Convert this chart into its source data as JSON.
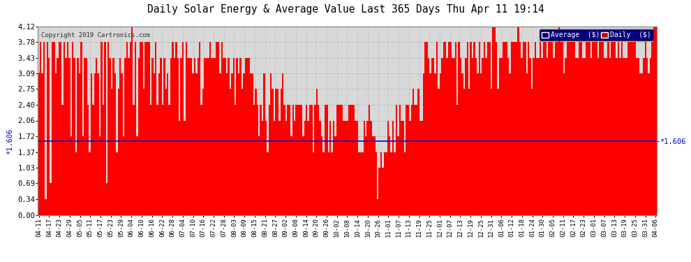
{
  "title": "Daily Solar Energy & Average Value Last 365 Days Thu Apr 11 19:14",
  "copyright": "Copyright 2019 Cartronics.com",
  "average_value": 1.606,
  "bar_color": "#FF0000",
  "average_color": "#0000CC",
  "background_color": "#FFFFFF",
  "plot_bg_color": "#D8D8D8",
  "grid_color": "#BBBBBB",
  "yticks": [
    0.0,
    0.34,
    0.69,
    1.03,
    1.37,
    1.72,
    2.06,
    2.4,
    2.75,
    3.09,
    3.43,
    3.78,
    4.12
  ],
  "ymax": 4.12,
  "legend_avg_color": "#000080",
  "legend_daily_color": "#CC0000",
  "xtick_labels": [
    "04-11",
    "04-17",
    "04-23",
    "04-29",
    "05-05",
    "05-11",
    "05-17",
    "05-23",
    "05-29",
    "06-04",
    "06-10",
    "06-16",
    "06-22",
    "06-28",
    "07-04",
    "07-10",
    "07-16",
    "07-22",
    "07-28",
    "08-03",
    "08-09",
    "08-15",
    "08-21",
    "08-27",
    "09-02",
    "09-08",
    "09-14",
    "09-20",
    "09-26",
    "10-02",
    "10-08",
    "10-14",
    "10-20",
    "10-26",
    "11-01",
    "11-07",
    "11-13",
    "11-19",
    "11-25",
    "12-01",
    "12-07",
    "12-13",
    "12-19",
    "12-25",
    "12-31",
    "01-06",
    "01-12",
    "01-18",
    "01-24",
    "01-30",
    "02-05",
    "02-11",
    "02-17",
    "02-23",
    "03-01",
    "03-07",
    "03-13",
    "03-19",
    "03-25",
    "03-31",
    "04-06"
  ],
  "bar_values": [
    3.1,
    3.78,
    3.09,
    3.78,
    0.34,
    3.78,
    3.43,
    0.69,
    3.78,
    3.78,
    3.09,
    3.43,
    3.78,
    3.78,
    2.4,
    3.78,
    3.43,
    3.78,
    3.43,
    1.72,
    3.78,
    3.43,
    1.37,
    3.43,
    3.09,
    3.78,
    1.72,
    3.43,
    3.43,
    2.4,
    1.37,
    3.09,
    2.4,
    3.09,
    3.43,
    3.09,
    1.72,
    3.78,
    2.4,
    3.78,
    0.69,
    3.78,
    3.43,
    2.75,
    3.43,
    3.09,
    1.37,
    2.75,
    3.43,
    3.09,
    1.72,
    3.43,
    3.78,
    3.43,
    3.78,
    4.12,
    2.4,
    3.78,
    1.72,
    3.43,
    3.78,
    3.78,
    2.75,
    3.78,
    3.78,
    3.78,
    2.4,
    3.43,
    3.09,
    3.78,
    2.4,
    3.09,
    3.43,
    2.4,
    3.43,
    2.75,
    3.09,
    2.4,
    3.43,
    3.78,
    3.43,
    3.78,
    3.43,
    2.06,
    3.43,
    3.78,
    2.06,
    3.78,
    3.43,
    3.43,
    3.43,
    3.09,
    3.43,
    3.09,
    3.43,
    3.78,
    2.4,
    2.75,
    3.43,
    3.43,
    3.43,
    3.78,
    3.43,
    3.43,
    3.43,
    3.78,
    3.78,
    3.09,
    3.78,
    3.43,
    3.43,
    3.09,
    3.43,
    2.75,
    3.09,
    3.43,
    2.4,
    3.43,
    3.09,
    3.43,
    2.75,
    3.09,
    3.43,
    3.43,
    3.43,
    3.09,
    3.09,
    2.4,
    2.75,
    2.4,
    1.72,
    2.4,
    2.06,
    3.09,
    2.06,
    1.37,
    2.4,
    3.09,
    2.75,
    2.06,
    2.75,
    2.75,
    2.06,
    2.75,
    3.09,
    2.4,
    2.06,
    2.4,
    2.4,
    1.72,
    2.4,
    2.06,
    2.4,
    2.4,
    2.4,
    2.4,
    1.72,
    2.06,
    2.4,
    2.06,
    2.4,
    2.4,
    1.37,
    2.4,
    2.75,
    2.4,
    2.06,
    1.72,
    1.37,
    2.4,
    2.4,
    1.37,
    2.06,
    1.37,
    2.06,
    1.72,
    2.4,
    2.4,
    2.4,
    2.4,
    2.06,
    2.06,
    2.06,
    2.4,
    2.4,
    2.4,
    2.4,
    2.06,
    2.06,
    1.37,
    1.37,
    1.37,
    2.06,
    1.72,
    2.06,
    2.4,
    2.06,
    1.72,
    1.72,
    1.37,
    0.34,
    1.03,
    1.37,
    1.03,
    1.37,
    1.37,
    2.06,
    1.72,
    1.37,
    2.06,
    1.37,
    2.4,
    1.72,
    2.4,
    2.06,
    2.06,
    1.37,
    2.4,
    2.4,
    2.06,
    2.4,
    2.75,
    2.4,
    2.4,
    2.75,
    2.06,
    2.06,
    3.09,
    3.78,
    3.78,
    3.43,
    3.09,
    3.43,
    3.43,
    3.09,
    3.78,
    2.75,
    3.09,
    3.43,
    3.78,
    3.78,
    3.43,
    3.78,
    3.78,
    3.43,
    3.43,
    3.78,
    2.4,
    3.78,
    3.43,
    3.09,
    2.75,
    3.43,
    3.78,
    2.75,
    3.78,
    3.43,
    3.78,
    3.43,
    3.09,
    3.78,
    3.09,
    3.43,
    3.78,
    3.43,
    3.78,
    3.78,
    2.75,
    4.12,
    4.12,
    3.78,
    2.75,
    3.43,
    3.43,
    3.78,
    3.78,
    3.78,
    3.43,
    3.09,
    3.78,
    3.78,
    3.78,
    3.78,
    4.12,
    3.78,
    3.43,
    3.78,
    3.78,
    3.09,
    3.78,
    3.43,
    2.75,
    3.43,
    3.78,
    3.43,
    3.43,
    3.78,
    3.43,
    3.78,
    3.78,
    3.43,
    3.78,
    3.78,
    3.78,
    3.43,
    3.78,
    3.78,
    4.12,
    3.78,
    3.78,
    3.09,
    3.43,
    3.78,
    3.78,
    3.78,
    3.78,
    3.78,
    3.43,
    3.43,
    3.78,
    3.78,
    3.43,
    3.43,
    3.78,
    3.78,
    3.78,
    3.43,
    3.78,
    3.78,
    3.78,
    3.43,
    3.78,
    3.78,
    3.78,
    3.43,
    3.43,
    3.78,
    3.43,
    3.78,
    3.78,
    3.78,
    3.43,
    3.78,
    3.43,
    3.78,
    3.43,
    3.43,
    3.43,
    3.78,
    3.78,
    3.78,
    3.78,
    3.78,
    3.43,
    3.43,
    3.09,
    3.09,
    3.43,
    3.78,
    3.43,
    3.09,
    3.43,
    3.78,
    4.12,
    4.12
  ]
}
